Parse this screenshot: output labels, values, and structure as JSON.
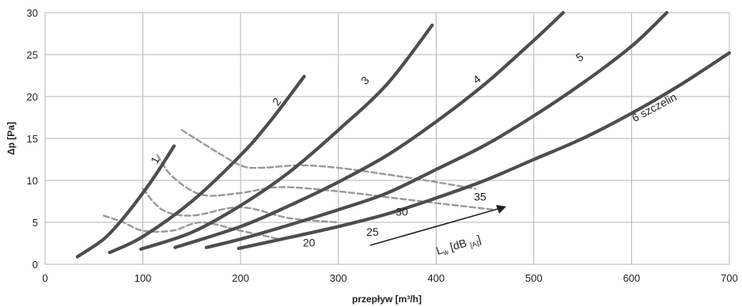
{
  "chart_data": {
    "type": "line",
    "xlabel": "przepływ [m³/h]",
    "ylabel": "Δp [Pa]",
    "xlim": [
      0,
      700
    ],
    "ylim": [
      0,
      30
    ],
    "x_ticks": [
      "0",
      "100",
      "200",
      "300",
      "400",
      "500",
      "600",
      "700"
    ],
    "y_ticks": [
      "0",
      "5",
      "10",
      "15",
      "20",
      "25",
      "30"
    ],
    "grid": true,
    "series": [
      {
        "name": "1",
        "kind": "solid",
        "color": "#4d4d4d",
        "x": [
          33,
          60,
          80,
          100,
          115,
          132
        ],
        "y": [
          0.9,
          3.0,
          5.5,
          8.5,
          11.0,
          14.1
        ]
      },
      {
        "name": "2",
        "kind": "solid",
        "color": "#4d4d4d",
        "x": [
          66,
          100,
          150,
          200,
          230,
          265
        ],
        "y": [
          1.4,
          3.3,
          7.5,
          13.0,
          17.0,
          22.4
        ]
      },
      {
        "name": "3",
        "kind": "solid",
        "color": "#4d4d4d",
        "x": [
          98,
          150,
          200,
          250,
          300,
          350,
          396
        ],
        "y": [
          1.8,
          3.8,
          7.0,
          11.0,
          16.0,
          21.5,
          28.5
        ]
      },
      {
        "name": "4",
        "kind": "solid",
        "color": "#4d4d4d",
        "x": [
          133,
          200,
          250,
          300,
          350,
          400,
          450,
          500,
          530
        ],
        "y": [
          2.0,
          4.5,
          7.0,
          9.8,
          13.0,
          17.0,
          21.5,
          26.7,
          30.0
        ]
      },
      {
        "name": "5",
        "kind": "solid",
        "color": "#4d4d4d",
        "x": [
          165,
          200,
          250,
          300,
          350,
          400,
          450,
          500,
          550,
          600,
          636
        ],
        "y": [
          2.0,
          3.0,
          4.7,
          6.5,
          8.5,
          11.3,
          14.2,
          17.7,
          21.6,
          26.0,
          30.0
        ]
      },
      {
        "name": "6 szczelin",
        "kind": "solid",
        "color": "#4d4d4d",
        "x": [
          198,
          250,
          300,
          350,
          400,
          450,
          500,
          550,
          600,
          650,
          700
        ],
        "y": [
          1.9,
          3.2,
          4.5,
          6.0,
          7.9,
          10.0,
          12.5,
          15.0,
          18.0,
          21.4,
          25.2
        ]
      },
      {
        "name": "20",
        "kind": "dashed",
        "color": "#999999",
        "x": [
          60,
          80,
          100,
          130,
          160,
          200,
          240
        ],
        "y": [
          5.8,
          5.0,
          4.0,
          4.0,
          5.0,
          4.0,
          3.0
        ]
      },
      {
        "name": "25",
        "kind": "dashed",
        "color": "#999999",
        "x": [
          100,
          120,
          150,
          200,
          250,
          300
        ],
        "y": [
          9.0,
          6.5,
          5.8,
          6.8,
          5.5,
          5.0
        ]
      },
      {
        "name": "30",
        "kind": "dashed",
        "color": "#999999",
        "x": [
          115,
          130,
          160,
          200,
          240,
          300,
          350,
          400,
          460
        ],
        "y": [
          13.0,
          10.5,
          8.3,
          8.5,
          9.2,
          8.7,
          8.0,
          7.3,
          6.5
        ]
      },
      {
        "name": "35",
        "kind": "dashed",
        "color": "#999999",
        "x": [
          140,
          170,
          200,
          220,
          260,
          300,
          350,
          400,
          440
        ],
        "y": [
          16.0,
          13.8,
          11.8,
          11.5,
          11.8,
          11.5,
          10.7,
          9.8,
          9.0
        ]
      }
    ],
    "curve_labels": [
      {
        "text": "1",
        "x": 116,
        "y": 12.2,
        "rotate": -62
      },
      {
        "text": "2",
        "x": 240,
        "y": 19.1,
        "rotate": -52
      },
      {
        "text": "3",
        "x": 330,
        "y": 21.6,
        "rotate": -46
      },
      {
        "text": "4",
        "x": 444,
        "y": 21.7,
        "rotate": -38
      },
      {
        "text": "5",
        "x": 549,
        "y": 24.3,
        "rotate": -33
      },
      {
        "text": "6 szczelin",
        "x": 625,
        "y": 18.3,
        "rotate": -28
      },
      {
        "text": "20",
        "x": 270,
        "y": 2.1,
        "rotate": 0
      },
      {
        "text": "25",
        "x": 335,
        "y": 3.4,
        "rotate": 0
      },
      {
        "text": "30",
        "x": 365,
        "y": 5.8,
        "rotate": 0
      },
      {
        "text": "35",
        "x": 445,
        "y": 7.6,
        "rotate": 0
      }
    ],
    "annotation": {
      "text_main": "L",
      "text_sub": "w",
      "text_mid": " [dB ",
      "text_sub2": "[A]",
      "text_end": "]"
    }
  }
}
